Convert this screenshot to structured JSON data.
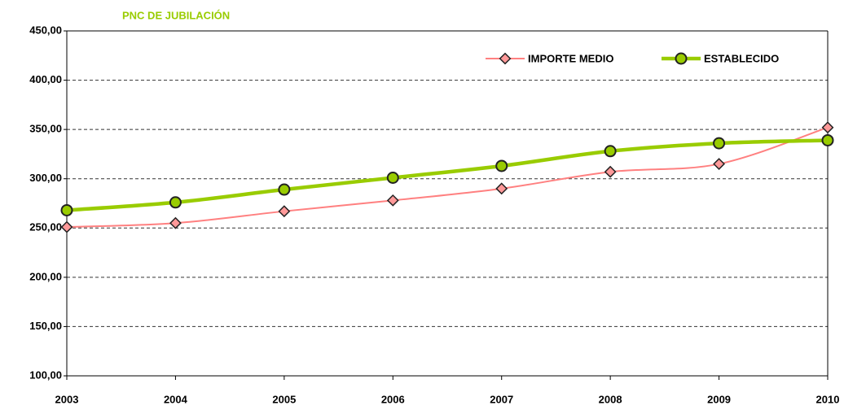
{
  "chart_data": {
    "type": "line",
    "title": "PNC DE JUBILACIÓN",
    "categories": [
      "2003",
      "2004",
      "2005",
      "2006",
      "2007",
      "2008",
      "2009",
      "2010"
    ],
    "series": [
      {
        "name": "IMPORTE MEDIO",
        "color": "#ff8080",
        "marker_color": "#ff9999",
        "values": [
          251,
          255,
          267,
          278,
          290,
          307,
          315,
          352
        ]
      },
      {
        "name": "ESTABLECIDO",
        "color": "#99cc00",
        "marker_color": "#99cc00",
        "values": [
          268,
          276,
          289,
          301,
          313,
          328,
          336,
          339
        ]
      }
    ],
    "ylim": [
      100,
      450
    ],
    "yticks": [
      {
        "value": 100,
        "label": "100,00"
      },
      {
        "value": 150,
        "label": "150,00"
      },
      {
        "value": 200,
        "label": "200,00"
      },
      {
        "value": 250,
        "label": "250,00"
      },
      {
        "value": 300,
        "label": "300,00"
      },
      {
        "value": 350,
        "label": "350,00"
      },
      {
        "value": 400,
        "label": "400,00"
      },
      {
        "value": 450,
        "label": "450,00"
      }
    ],
    "grid": true,
    "legend": "top-right",
    "title_color": "#99cc00"
  }
}
